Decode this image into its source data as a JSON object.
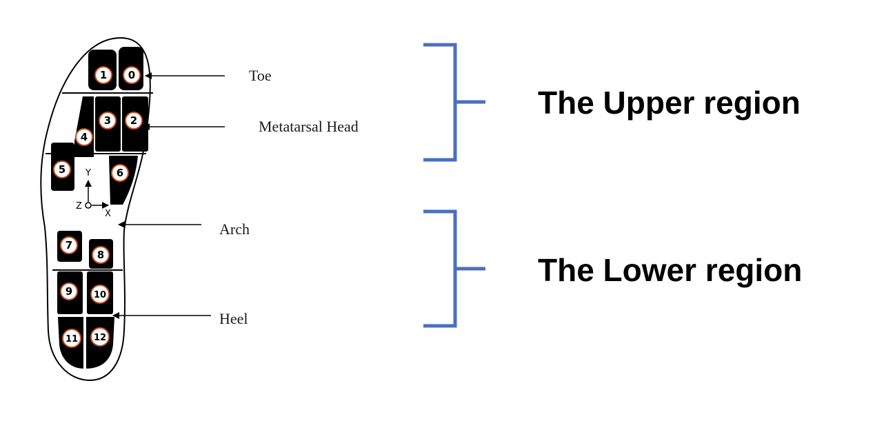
{
  "sensors": [
    "0",
    "1",
    "2",
    "3",
    "4",
    "5",
    "6",
    "7",
    "8",
    "9",
    "10",
    "11",
    "12"
  ],
  "foot_labels": {
    "toe": "Toe",
    "metatarsal_head": "Metatarsal Head",
    "arch": "Arch",
    "heel": "Heel"
  },
  "axes": {
    "x": "X",
    "y": "Y",
    "z": "Z"
  },
  "regions": {
    "upper": "The Upper region",
    "lower": "The Lower region"
  },
  "colors": {
    "bracket": "#4a6fc0",
    "sensor_pad": "#000000",
    "sensor_circle": "#c8501e"
  }
}
